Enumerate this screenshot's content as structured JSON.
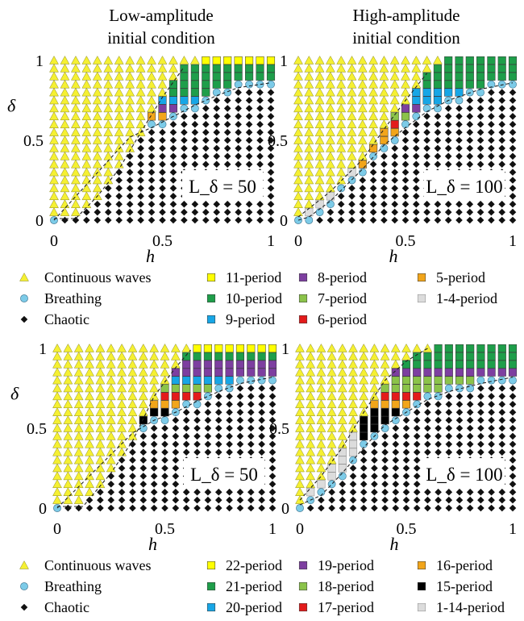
{
  "column_titles": [
    [
      "Low-amplitude",
      "initial condition"
    ],
    [
      "High-amplitude",
      "initial condition"
    ]
  ],
  "chart_data": [
    {
      "type": "scatter",
      "xlabel": "h",
      "ylabel": "δ",
      "xlim": [
        0,
        1
      ],
      "ylim": [
        0,
        1
      ],
      "xticks": [
        "0",
        "0.5",
        "1"
      ],
      "yticks": [
        "0",
        "0.5",
        "1"
      ],
      "grid_step": 0.05,
      "annotation": "L_δ = 50",
      "regions": {
        "upper_boundary": [
          [
            0.1,
            0
          ],
          [
            0.3,
            0.33
          ],
          [
            0.45,
            0.75
          ],
          [
            0.6,
            1
          ]
        ],
        "lower_boundary": [
          [
            0.35,
            0.5
          ],
          [
            0.5,
            0.6
          ],
          [
            0.8,
            0.85
          ],
          [
            1,
            0.85
          ]
        ],
        "fill_rows": [
          {
            "y": 0.8,
            "values": [
              [
                "red",
                0.5
              ],
              [
                "purple",
                0.55
              ]
            ]
          },
          {
            "y": 0.75,
            "values": [
              [
                "green",
                0.45
              ],
              [
                "red",
                0.5
              ],
              [
                "purple",
                0.55
              ]
            ]
          },
          {
            "y": 0.7,
            "values": [
              [
                "green",
                0.45
              ],
              [
                "purple",
                0.5
              ]
            ]
          },
          {
            "y": 0.65,
            "values": [
              [
                "orange",
                0.4
              ],
              [
                "purple",
                0.45
              ]
            ]
          },
          {
            "y": 0.6,
            "values": [
              [
                "green",
                0.35
              ],
              [
                "red",
                0.4
              ],
              [
                "purple",
                0.45
              ]
            ]
          },
          {
            "y": 0.55,
            "values": [
              [
                "red",
                0.35
              ],
              [
                "green",
                0.4
              ]
            ]
          }
        ],
        "top_rows": [
          {
            "y": 1,
            "values": [
              [
                "purple",
                0.75
              ],
              [
                "blue",
                0.8
              ],
              [
                "green",
                0.85
              ],
              [
                "yellow",
                1
              ]
            ]
          },
          {
            "y": 0.95,
            "values": [
              [
                "purple",
                0.7
              ],
              [
                "blue",
                0.75
              ],
              [
                "green",
                0.85
              ],
              [
                "yellow",
                1
              ]
            ]
          },
          {
            "y": 0.9,
            "values": [
              [
                "purple",
                0.6
              ],
              [
                "blue",
                0.7
              ],
              [
                "green",
                0.85
              ]
            ]
          },
          {
            "y": 0.85,
            "values": [
              [
                "purple",
                0.55
              ],
              [
                "blue",
                0.65
              ],
              [
                "green",
                0.8
              ]
            ]
          }
        ]
      }
    },
    {
      "type": "scatter",
      "xlabel": "h",
      "ylabel": "δ",
      "xlim": [
        0,
        1
      ],
      "ylim": [
        0,
        1
      ],
      "xticks": [
        "0",
        "0.5",
        "1"
      ],
      "yticks": [
        "0",
        "0.5",
        "1"
      ],
      "grid_step": 0.05,
      "annotation": "L_δ = 100",
      "note": "lower-left diagonal band of breathing and 1-4-period points, upper band of 5- to 11-period points"
    },
    {
      "type": "scatter",
      "xlabel": "h",
      "ylabel": "δ",
      "xlim": [
        0,
        1
      ],
      "ylim": [
        0,
        1
      ],
      "xticks": [
        "0",
        "0.5",
        "1"
      ],
      "yticks": [
        "0",
        "0.5",
        "1"
      ],
      "grid_step": 0.05,
      "annotation": "L_δ = 50",
      "note": "15-period black wedge below 16- to 22-period points"
    },
    {
      "type": "scatter",
      "xlabel": "h",
      "ylabel": "δ",
      "xlim": [
        0,
        1
      ],
      "ylim": [
        0,
        1
      ],
      "xticks": [
        "0",
        "0.5",
        "1"
      ],
      "yticks": [
        "0",
        "0.5",
        "1"
      ],
      "grid_step": 0.05,
      "annotation": "L_δ = 100",
      "note": "1-14-period diagonal band, 15-period black wedge, 16- to 22-period upper band"
    }
  ],
  "legend_top": {
    "common": [
      {
        "label": "Continuous waves",
        "marker": "triangle",
        "color": "#f5f032"
      },
      {
        "label": "Breathing",
        "marker": "circle",
        "color": "#7ccbe8"
      },
      {
        "label": "Chaotic",
        "marker": "diamond",
        "color": "#111111"
      }
    ],
    "periods": [
      {
        "label": "11-period",
        "color": "#ffff00"
      },
      {
        "label": "10-period",
        "color": "#1e9e4a"
      },
      {
        "label": "9-period",
        "color": "#17a6e6"
      },
      {
        "label": "8-period",
        "color": "#7d3fa0"
      },
      {
        "label": "7-period",
        "color": "#8bc34a"
      },
      {
        "label": "6-period",
        "color": "#e31b1b"
      },
      {
        "label": "5-period",
        "color": "#f2a51a"
      },
      {
        "label": "1-4-period",
        "color": "#dcdcdc"
      }
    ]
  },
  "legend_bottom": {
    "common": [
      {
        "label": "Continuous waves",
        "marker": "triangle",
        "color": "#f5f032"
      },
      {
        "label": "Breathing",
        "marker": "circle",
        "color": "#7ccbe8"
      },
      {
        "label": "Chaotic",
        "marker": "diamond",
        "color": "#111111"
      }
    ],
    "periods": [
      {
        "label": "22-period",
        "color": "#ffff00"
      },
      {
        "label": "21-period",
        "color": "#1e9e4a"
      },
      {
        "label": "20-period",
        "color": "#17a6e6"
      },
      {
        "label": "19-period",
        "color": "#7d3fa0"
      },
      {
        "label": "18-period",
        "color": "#8bc34a"
      },
      {
        "label": "17-period",
        "color": "#e31b1b"
      },
      {
        "label": "16-period",
        "color": "#f2a51a"
      },
      {
        "label": "15-period",
        "color": "#000000"
      },
      {
        "label": "1-14-period",
        "color": "#dcdcdc"
      }
    ]
  }
}
